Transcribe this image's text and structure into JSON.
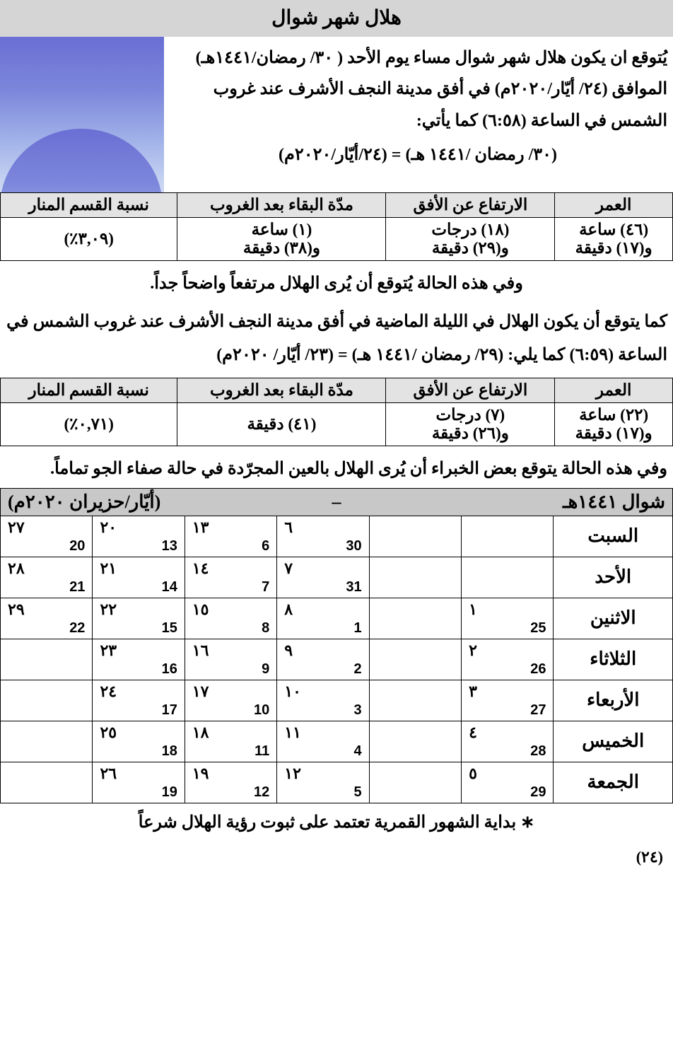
{
  "title": "هلال شهر شوال",
  "intro": {
    "line1": "يُتوقع ان يكون هلال شهر شوال مساء يوم الأحد ( ٣٠/ رمضان/١٤٤١هـ)",
    "line2": "الموافق (٢٤/ أيّار/٢٠٢٠م) في أفق مدينة النجف الأشرف عند غروب",
    "line3": "الشمس في الساعة (٦:٥٨) كما يأتي:",
    "equiv": "(٣٠/ رمضان /١٤٤١ هـ) = (٢٤/أيّار/٢٠٢٠م)"
  },
  "table1": {
    "headers": [
      "العمر",
      "الارتفاع عن الأفق",
      "مدّة البقاء بعد الغروب",
      "نسبة القسم المنار"
    ],
    "row": {
      "age": "(٤٦) ساعة\nو(١٧) دقيقة",
      "alt": "(١٨) درجات\nو(٢٩) دقيقة",
      "stay": "(١) ساعة\nو(٣٨) دقيقة",
      "illum": "(٣,٠٩٪)"
    }
  },
  "note1": "وفي هذه الحالة يُتوقع أن يُرى الهلال مرتفعاً واضحاً جداً.",
  "note2a": "كما يتوقع أن يكون الهلال في الليلة الماضية في أفق مدينة النجف الأشرف عند غروب الشمس في",
  "note2b": "الساعة (٦:٥٩) كما يلي:    (٢٩/ رمضان /١٤٤١ هـ) = (٢٣/ أيّار/ ٢٠٢٠م)",
  "table2": {
    "headers": [
      "العمر",
      "الارتفاع عن الأفق",
      "مدّة البقاء بعد الغروب",
      "نسبة القسم المنار"
    ],
    "row": {
      "age": "(٢٢) ساعة\nو(١٧) دقيقة",
      "alt": "(٧) درجات\nو(٢٦) دقيقة",
      "stay": "(٤١) دقيقة",
      "illum": "(٠,٧١٪)"
    }
  },
  "note3": "وفي هذه الحالة يتوقع بعض الخبراء أن يُرى الهلال بالعين المجرّدة في حالة صفاء الجو تماماً.",
  "cal": {
    "hijri_month": "شوال ١٤٤١هـ",
    "dash": "–",
    "greg_month": "(أيّار/حزيران ٢٠٢٠م)",
    "days": [
      "السبت",
      "الأحد",
      "الاثنين",
      "الثلاثاء",
      "الأربعاء",
      "الخميس",
      "الجمعة"
    ],
    "grid": [
      [
        {
          "h": "",
          "g": ""
        },
        {
          "h": "",
          "g": ""
        },
        {
          "h": "٦",
          "g": "30"
        },
        {
          "h": "١٣",
          "g": "6"
        },
        {
          "h": "٢٠",
          "g": "13"
        },
        {
          "h": "٢٧",
          "g": "20"
        }
      ],
      [
        {
          "h": "",
          "g": ""
        },
        {
          "h": "",
          "g": ""
        },
        {
          "h": "٧",
          "g": "31"
        },
        {
          "h": "١٤",
          "g": "7"
        },
        {
          "h": "٢١",
          "g": "14"
        },
        {
          "h": "٢٨",
          "g": "21"
        }
      ],
      [
        {
          "h": "١",
          "g": "25"
        },
        {
          "h": "",
          "g": ""
        },
        {
          "h": "٨",
          "g": "1"
        },
        {
          "h": "١٥",
          "g": "8"
        },
        {
          "h": "٢٢",
          "g": "15"
        },
        {
          "h": "٢٩",
          "g": "22"
        }
      ],
      [
        {
          "h": "٢",
          "g": "26"
        },
        {
          "h": "",
          "g": ""
        },
        {
          "h": "٩",
          "g": "2"
        },
        {
          "h": "١٦",
          "g": "9"
        },
        {
          "h": "٢٣",
          "g": "16"
        },
        {
          "h": "",
          "g": ""
        }
      ],
      [
        {
          "h": "٣",
          "g": "27"
        },
        {
          "h": "",
          "g": ""
        },
        {
          "h": "١٠",
          "g": "3"
        },
        {
          "h": "١٧",
          "g": "10"
        },
        {
          "h": "٢٤",
          "g": "17"
        },
        {
          "h": "",
          "g": ""
        }
      ],
      [
        {
          "h": "٤",
          "g": "28"
        },
        {
          "h": "",
          "g": ""
        },
        {
          "h": "١١",
          "g": "4"
        },
        {
          "h": "١٨",
          "g": "11"
        },
        {
          "h": "٢٥",
          "g": "18"
        },
        {
          "h": "",
          "g": ""
        }
      ],
      [
        {
          "h": "٥",
          "g": "29"
        },
        {
          "h": "",
          "g": ""
        },
        {
          "h": "١٢",
          "g": "5"
        },
        {
          "h": "١٩",
          "g": "12"
        },
        {
          "h": "٢٦",
          "g": "19"
        },
        {
          "h": "",
          "g": ""
        }
      ]
    ]
  },
  "footnote": "∗  بداية الشهور القمرية تعتمد على ثبوت رؤية الهلال شرعاً",
  "page_num": "(٢٤)"
}
